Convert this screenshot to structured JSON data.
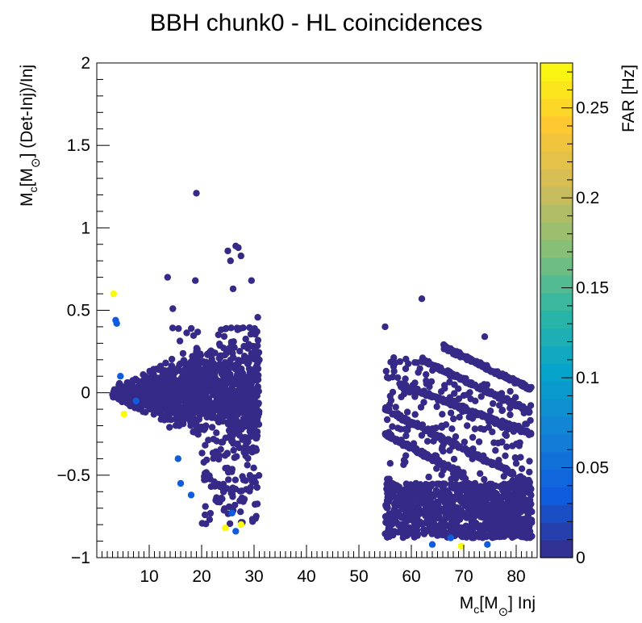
{
  "chart_data": {
    "type": "scatter",
    "title": "BBH chunk0 - HL coincidences",
    "xlabel": {
      "pre": "M",
      "sub": "c",
      "mid": "[M",
      "sun_sub": "⊙",
      "post": "] Inj"
    },
    "ylabel": {
      "pre": "M",
      "sub": "c",
      "mid": "[M",
      "sun_sub": "⊙",
      "post": "] (Det-Inj)/Inj"
    },
    "xlim": [
      0,
      84
    ],
    "ylim": [
      -1,
      2
    ],
    "x_ticks": [
      10,
      20,
      30,
      40,
      50,
      60,
      70,
      80
    ],
    "y_ticks": [
      -1,
      -0.5,
      0,
      0.5,
      1,
      1.5,
      2
    ],
    "y_tick_labels": [
      "−1",
      "−0.5",
      "0",
      "0.5",
      "1",
      "1.5",
      "2"
    ],
    "grid": false,
    "colorbar": {
      "label": "FAR [Hz]",
      "range": [
        0,
        0.275
      ],
      "ticks": [
        0,
        0.05,
        0.1,
        0.15,
        0.2,
        0.25
      ],
      "tick_labels": [
        "0",
        "0.05",
        "0.1",
        "0.15",
        "0.2",
        "0.25"
      ],
      "colormap": [
        "#352a87",
        "#0f5cdd",
        "#1481d6",
        "#06a4ca",
        "#2eb7a4",
        "#87bf77",
        "#d1bb59",
        "#fec832",
        "#f9fb0e"
      ]
    },
    "dense_clusters": [
      {
        "x_range": [
          3,
          31
        ],
        "y_center": 0.0,
        "y_spread": [
          -0.35,
          0.2
        ],
        "far": 0.0
      },
      {
        "x_range": [
          55,
          83
        ],
        "band": "lower",
        "y_range": [
          -0.85,
          -0.55
        ],
        "far": 0.0
      },
      {
        "x_range": [
          55,
          83
        ],
        "band": "upper",
        "y_range": [
          -0.55,
          0.3
        ],
        "far": 0.0
      }
    ],
    "highlight_points": [
      {
        "x": 19.0,
        "y": 1.21,
        "far": 0.0
      },
      {
        "x": 25.0,
        "y": 0.86,
        "far": 0.0
      },
      {
        "x": 26.5,
        "y": 0.89,
        "far": 0.0
      },
      {
        "x": 27.0,
        "y": 0.88,
        "far": 0.0
      },
      {
        "x": 25.5,
        "y": 0.8,
        "far": 0.0
      },
      {
        "x": 27.5,
        "y": 0.83,
        "far": 0.0
      },
      {
        "x": 13.5,
        "y": 0.7,
        "far": 0.0
      },
      {
        "x": 18.8,
        "y": 0.68,
        "far": 0.0
      },
      {
        "x": 26.0,
        "y": 0.63,
        "far": 0.0
      },
      {
        "x": 29.5,
        "y": 0.68,
        "far": 0.0
      },
      {
        "x": 14.5,
        "y": 0.51,
        "far": 0.0
      },
      {
        "x": 62.0,
        "y": 0.57,
        "far": 0.0
      },
      {
        "x": 55.0,
        "y": 0.4,
        "far": 0.0
      },
      {
        "x": 74.0,
        "y": 0.34,
        "far": 0.0
      },
      {
        "x": 3.2,
        "y": 0.6,
        "far": 0.27
      },
      {
        "x": 3.6,
        "y": 0.44,
        "far": 0.06
      },
      {
        "x": 3.8,
        "y": 0.42,
        "far": 0.05
      },
      {
        "x": 4.5,
        "y": 0.1,
        "far": 0.04
      },
      {
        "x": 5.2,
        "y": -0.13,
        "far": 0.27
      },
      {
        "x": 7.5,
        "y": -0.05,
        "far": 0.05
      },
      {
        "x": 15.5,
        "y": -0.4,
        "far": 0.04
      },
      {
        "x": 18.0,
        "y": -0.62,
        "far": 0.04
      },
      {
        "x": 16.0,
        "y": -0.55,
        "far": 0.05
      },
      {
        "x": 24.5,
        "y": -0.82,
        "far": 0.27
      },
      {
        "x": 27.5,
        "y": -0.8,
        "far": 0.26
      },
      {
        "x": 26.5,
        "y": -0.84,
        "far": 0.05
      },
      {
        "x": 25.8,
        "y": -0.73,
        "far": 0.04
      },
      {
        "x": 69.5,
        "y": -0.93,
        "far": 0.27
      },
      {
        "x": 64.0,
        "y": -0.92,
        "far": 0.04
      },
      {
        "x": 74.5,
        "y": -0.92,
        "far": 0.05
      },
      {
        "x": 67.5,
        "y": -0.88,
        "far": 0.04
      },
      {
        "x": 58.5,
        "y": -0.82,
        "far": 0.03
      }
    ]
  }
}
